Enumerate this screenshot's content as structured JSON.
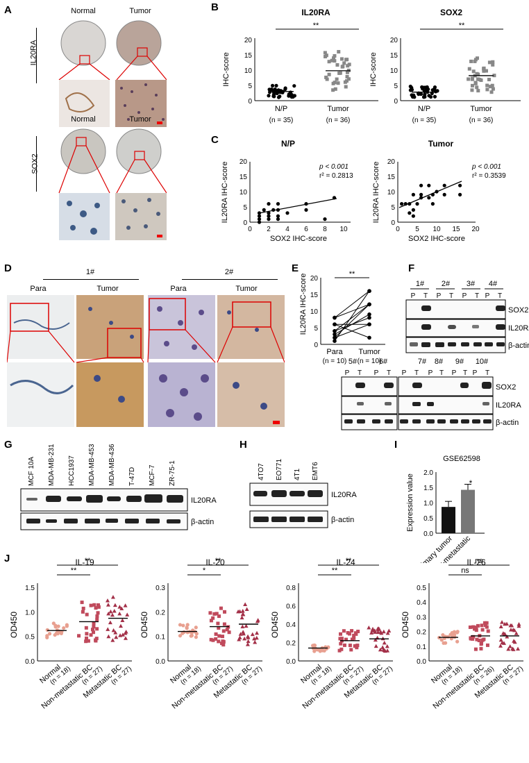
{
  "panels": {
    "A": {
      "letter": "A",
      "col_normal": "Normal",
      "col_tumor": "Tumor",
      "row1": "IL20RA",
      "row2": "SOX2"
    },
    "B": {
      "letter": "B",
      "plots": [
        {
          "title": "IL20RA",
          "ylabel": "IHC-score",
          "sig": "**",
          "groups": [
            "N/P",
            "Tumor"
          ],
          "ns": [
            "(n = 35)",
            "(n = 36)"
          ],
          "yticks": [
            "0",
            "5",
            "10",
            "15",
            "20"
          ]
        },
        {
          "title": "SOX2",
          "ylabel": "IHC-score",
          "sig": "**",
          "groups": [
            "N/P",
            "Tumor"
          ],
          "ns": [
            "(n = 35)",
            "(n = 36)"
          ],
          "yticks": [
            "0",
            "5",
            "10",
            "15",
            "20"
          ]
        }
      ]
    },
    "C": {
      "letter": "C",
      "plots": [
        {
          "title": "N/P",
          "xlabel": "SOX2 IHC-score",
          "ylabel": "IL20RA IHC-score",
          "p": "p < 0.001",
          "r2": "r² = 0.2813",
          "xticks": [
            "0",
            "2",
            "4",
            "6",
            "8",
            "10"
          ],
          "yticks": [
            "0",
            "5",
            "10",
            "15",
            "20"
          ]
        },
        {
          "title": "Tumor",
          "xlabel": "SOX2 IHC-score",
          "ylabel": "IL20RA IHC-score",
          "p": "p < 0.001",
          "r2": "r² = 0.3539",
          "xticks": [
            "0",
            "5",
            "10",
            "15",
            "20"
          ],
          "yticks": [
            "0",
            "5",
            "10",
            "15",
            "20"
          ]
        }
      ]
    },
    "D": {
      "letter": "D",
      "case1": "1#",
      "case2": "2#",
      "para": "Para",
      "tumor": "Tumor"
    },
    "E": {
      "letter": "E",
      "ylabel": "IL20RA IHC-score",
      "sig": "**",
      "groups": [
        "Para",
        "Tumor"
      ],
      "ns": [
        "(n = 10)",
        "(n = 10)"
      ],
      "yticks": [
        "0",
        "5",
        "10",
        "15",
        "20"
      ]
    },
    "F": {
      "letter": "F",
      "top_cases": [
        "1#",
        "2#",
        "3#",
        "4#"
      ],
      "bottom_cases_a": [
        "5#",
        "6#"
      ],
      "bottom_cases_b": [
        "7#",
        "8#",
        "9#",
        "10#"
      ],
      "P": "P",
      "T": "T",
      "rows": [
        "SOX2",
        "IL20RA",
        "β-actin"
      ]
    },
    "G": {
      "letter": "G",
      "lanes": [
        "MCF 10A",
        "MDA-MB-231",
        "HCC1937",
        "MDA-MB-453",
        "MDA-MB-436",
        "T-47D",
        "MCF-7",
        "ZR-75-1"
      ],
      "rows": [
        "IL20RA",
        "β-actin"
      ]
    },
    "H": {
      "letter": "H",
      "lanes": [
        "4TO7",
        "EO771",
        "4T1",
        "EMT6"
      ],
      "rows": [
        "IL20RA",
        "β-actin"
      ]
    },
    "I": {
      "letter": "I",
      "title": "GSE62598",
      "ylabel": "Expression value",
      "sig": "*",
      "yticks": [
        "0.0",
        "0.5",
        "1.0",
        "1.5",
        "2.0"
      ]
    },
    "J": {
      "letter": "J",
      "ylabel": "OD450",
      "plots": [
        {
          "title": "IL-19",
          "sig1": "**",
          "sig2": "**",
          "yticks": [
            "0.0",
            "0.5",
            "1.0",
            "1.5"
          ],
          "ns": [
            "(n = 18)",
            "(n = 27)",
            "(n = 27)"
          ]
        },
        {
          "title": "IL-20",
          "sig1": "*",
          "sig2": "**",
          "yticks": [
            "0.0",
            "0.1",
            "0.2",
            "0.3"
          ],
          "ns": [
            "(n = 18)",
            "(n = 27)",
            "(n = 27)"
          ]
        },
        {
          "title": "IL-24",
          "sig1": "**",
          "sig2": "**",
          "yticks": [
            "0.0",
            "0.2",
            "0.4",
            "0.6",
            "0.8"
          ],
          "ns": [
            "(n = 18)",
            "(n = 27)",
            "(n = 27)"
          ]
        },
        {
          "title": "IL-26",
          "sig1": "ns",
          "sig2": "ns",
          "yticks": [
            "0.0",
            "0.1",
            "0.2",
            "0.3",
            "0.4",
            "0.5"
          ],
          "ns": [
            "(n = 18)",
            "(n = 26)",
            "(n = 27)"
          ]
        }
      ],
      "groups": [
        "Normal",
        "Non-metastatic BC",
        "Metastatic BC"
      ]
    }
  },
  "chart_data": [
    {
      "type": "scatter",
      "panel": "B",
      "title": "IL20RA",
      "ylabel": "IHC-score",
      "categories": [
        "N/P",
        "Tumor"
      ],
      "mean": [
        3,
        9.8
      ],
      "ylim": [
        0,
        20
      ]
    },
    {
      "type": "scatter",
      "panel": "B",
      "title": "SOX2",
      "ylabel": "IHC-score",
      "categories": [
        "N/P",
        "Tumor"
      ],
      "mean": [
        2.8,
        8.2
      ],
      "ylim": [
        0,
        20
      ]
    },
    {
      "type": "scatter",
      "panel": "C",
      "title": "N/P",
      "xlabel": "SOX2 IHC-score",
      "ylabel": "IL20RA IHC-score",
      "xlim": [
        0,
        10
      ],
      "ylim": [
        0,
        20
      ],
      "x": [
        1,
        1,
        1,
        1.5,
        2,
        2,
        2,
        2.5,
        3,
        3,
        3,
        4,
        6,
        6,
        8,
        9,
        1,
        2,
        3
      ],
      "y": [
        1,
        2,
        3,
        4,
        1,
        2,
        3,
        4,
        2,
        4,
        6,
        3,
        4,
        6,
        1,
        8,
        0,
        6,
        1
      ]
    },
    {
      "type": "scatter",
      "panel": "C",
      "title": "Tumor",
      "xlabel": "SOX2 IHC-score",
      "ylabel": "IL20RA IHC-score",
      "xlim": [
        0,
        20
      ],
      "ylim": [
        0,
        20
      ],
      "x": [
        1,
        2,
        3,
        3,
        4,
        4,
        4,
        5,
        6,
        6,
        6,
        8,
        8,
        9,
        9,
        10,
        12,
        12,
        16,
        16
      ],
      "y": [
        6,
        6,
        3,
        6,
        2,
        4,
        9,
        6,
        8,
        9,
        12,
        8,
        12,
        6,
        9,
        10,
        12,
        9,
        12,
        9
      ]
    },
    {
      "type": "line",
      "panel": "E",
      "ylabel": "IL20RA IHC-score",
      "categories": [
        "Para",
        "Tumor"
      ],
      "ylim": [
        0,
        20
      ],
      "series": [
        {
          "values": [
            1,
            16
          ]
        },
        {
          "values": [
            2,
            12
          ]
        },
        {
          "values": [
            4,
            8
          ]
        },
        {
          "values": [
            6,
            2
          ]
        },
        {
          "values": [
            8,
            12
          ]
        },
        {
          "values": [
            8,
            16
          ]
        },
        {
          "values": [
            2,
            6
          ]
        },
        {
          "values": [
            3,
            9
          ]
        },
        {
          "values": [
            6,
            6
          ]
        },
        {
          "values": [
            4,
            12
          ]
        }
      ]
    },
    {
      "type": "bar",
      "panel": "I",
      "title": "GSE62598",
      "ylabel": "Expression value",
      "categories": [
        "Primary tumor",
        "Liver-metastatic"
      ],
      "values": [
        0.86,
        1.42
      ],
      "ylim": [
        0,
        2
      ]
    },
    {
      "type": "scatter",
      "panel": "J",
      "title": "IL-19",
      "ylabel": "OD450",
      "categories": [
        "Normal",
        "Non-metastatic BC",
        "Metastatic BC"
      ],
      "mean": [
        0.62,
        0.8,
        0.87
      ],
      "ylim": [
        0,
        1.5
      ]
    },
    {
      "type": "scatter",
      "panel": "J",
      "title": "IL-20",
      "ylabel": "OD450",
      "categories": [
        "Normal",
        "Non-metastatic BC",
        "Metastatic BC"
      ],
      "mean": [
        0.12,
        0.14,
        0.15
      ],
      "ylim": [
        0,
        0.3
      ]
    },
    {
      "type": "scatter",
      "panel": "J",
      "title": "IL-24",
      "ylabel": "OD450",
      "categories": [
        "Normal",
        "Non-metastatic BC",
        "Metastatic BC"
      ],
      "mean": [
        0.14,
        0.22,
        0.24
      ],
      "ylim": [
        0,
        0.8
      ]
    },
    {
      "type": "scatter",
      "panel": "J",
      "title": "IL-26",
      "ylabel": "OD450",
      "categories": [
        "Normal",
        "Non-metastatic BC",
        "Metastatic BC"
      ],
      "mean": [
        0.16,
        0.17,
        0.17
      ],
      "ylim": [
        0,
        0.5
      ]
    }
  ]
}
